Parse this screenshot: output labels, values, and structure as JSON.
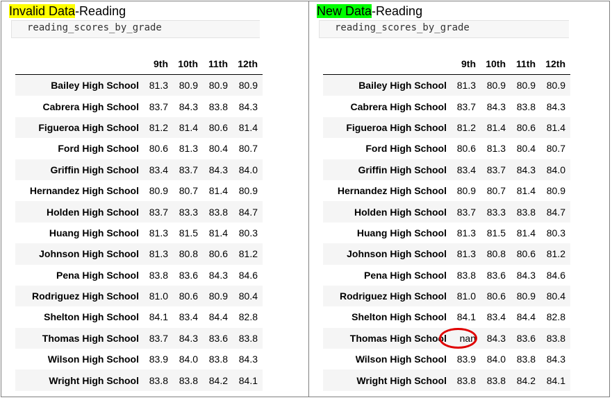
{
  "left": {
    "title_highlight": "Invalid Data",
    "title_rest": "-Reading",
    "code": "reading_scores_by_grade",
    "columns": [
      "9th",
      "10th",
      "11th",
      "12th"
    ],
    "rows": [
      {
        "school": "Bailey High School",
        "values": [
          "81.3",
          "80.9",
          "80.9",
          "80.9"
        ]
      },
      {
        "school": "Cabrera High School",
        "values": [
          "83.7",
          "84.3",
          "83.8",
          "84.3"
        ]
      },
      {
        "school": "Figueroa High School",
        "values": [
          "81.2",
          "81.4",
          "80.6",
          "81.4"
        ]
      },
      {
        "school": "Ford High School",
        "values": [
          "80.6",
          "81.3",
          "80.4",
          "80.7"
        ]
      },
      {
        "school": "Griffin High School",
        "values": [
          "83.4",
          "83.7",
          "84.3",
          "84.0"
        ]
      },
      {
        "school": "Hernandez High School",
        "values": [
          "80.9",
          "80.7",
          "81.4",
          "80.9"
        ]
      },
      {
        "school": "Holden High School",
        "values": [
          "83.7",
          "83.3",
          "83.8",
          "84.7"
        ]
      },
      {
        "school": "Huang High School",
        "values": [
          "81.3",
          "81.5",
          "81.4",
          "80.3"
        ]
      },
      {
        "school": "Johnson High School",
        "values": [
          "81.3",
          "80.8",
          "80.6",
          "81.2"
        ]
      },
      {
        "school": "Pena High School",
        "values": [
          "83.8",
          "83.6",
          "84.3",
          "84.6"
        ]
      },
      {
        "school": "Rodriguez High School",
        "values": [
          "81.0",
          "80.6",
          "80.9",
          "80.4"
        ]
      },
      {
        "school": "Shelton High School",
        "values": [
          "84.1",
          "83.4",
          "84.4",
          "82.8"
        ]
      },
      {
        "school": "Thomas High School",
        "values": [
          "83.7",
          "84.3",
          "83.6",
          "83.8"
        ]
      },
      {
        "school": "Wilson High School",
        "values": [
          "83.9",
          "84.0",
          "83.8",
          "84.3"
        ]
      },
      {
        "school": "Wright High School",
        "values": [
          "83.8",
          "83.8",
          "84.2",
          "84.1"
        ]
      }
    ]
  },
  "right": {
    "title_highlight": "New Data",
    "title_rest": "-Reading",
    "code": "reading_scores_by_grade",
    "columns": [
      "9th",
      "10th",
      "11th",
      "12th"
    ],
    "rows": [
      {
        "school": "Bailey High School",
        "values": [
          "81.3",
          "80.9",
          "80.9",
          "80.9"
        ]
      },
      {
        "school": "Cabrera High School",
        "values": [
          "83.7",
          "84.3",
          "83.8",
          "84.3"
        ]
      },
      {
        "school": "Figueroa High School",
        "values": [
          "81.2",
          "81.4",
          "80.6",
          "81.4"
        ]
      },
      {
        "school": "Ford High School",
        "values": [
          "80.6",
          "81.3",
          "80.4",
          "80.7"
        ]
      },
      {
        "school": "Griffin High School",
        "values": [
          "83.4",
          "83.7",
          "84.3",
          "84.0"
        ]
      },
      {
        "school": "Hernandez High School",
        "values": [
          "80.9",
          "80.7",
          "81.4",
          "80.9"
        ]
      },
      {
        "school": "Holden High School",
        "values": [
          "83.7",
          "83.3",
          "83.8",
          "84.7"
        ]
      },
      {
        "school": "Huang High School",
        "values": [
          "81.3",
          "81.5",
          "81.4",
          "80.3"
        ]
      },
      {
        "school": "Johnson High School",
        "values": [
          "81.3",
          "80.8",
          "80.6",
          "81.2"
        ]
      },
      {
        "school": "Pena High School",
        "values": [
          "83.8",
          "83.6",
          "84.3",
          "84.6"
        ]
      },
      {
        "school": "Rodriguez High School",
        "values": [
          "81.0",
          "80.6",
          "80.9",
          "80.4"
        ]
      },
      {
        "school": "Shelton High School",
        "values": [
          "84.1",
          "83.4",
          "84.4",
          "82.8"
        ]
      },
      {
        "school": "Thomas High School",
        "values": [
          "nan",
          "84.3",
          "83.6",
          "83.8"
        ]
      },
      {
        "school": "Wilson High School",
        "values": [
          "83.9",
          "84.0",
          "83.8",
          "84.3"
        ]
      },
      {
        "school": "Wright High School",
        "values": [
          "83.8",
          "83.8",
          "84.2",
          "84.1"
        ]
      }
    ]
  },
  "colors": {
    "highlight_left": "#ffff00",
    "highlight_right": "#00ff00",
    "annotation_circle": "#e00000"
  }
}
